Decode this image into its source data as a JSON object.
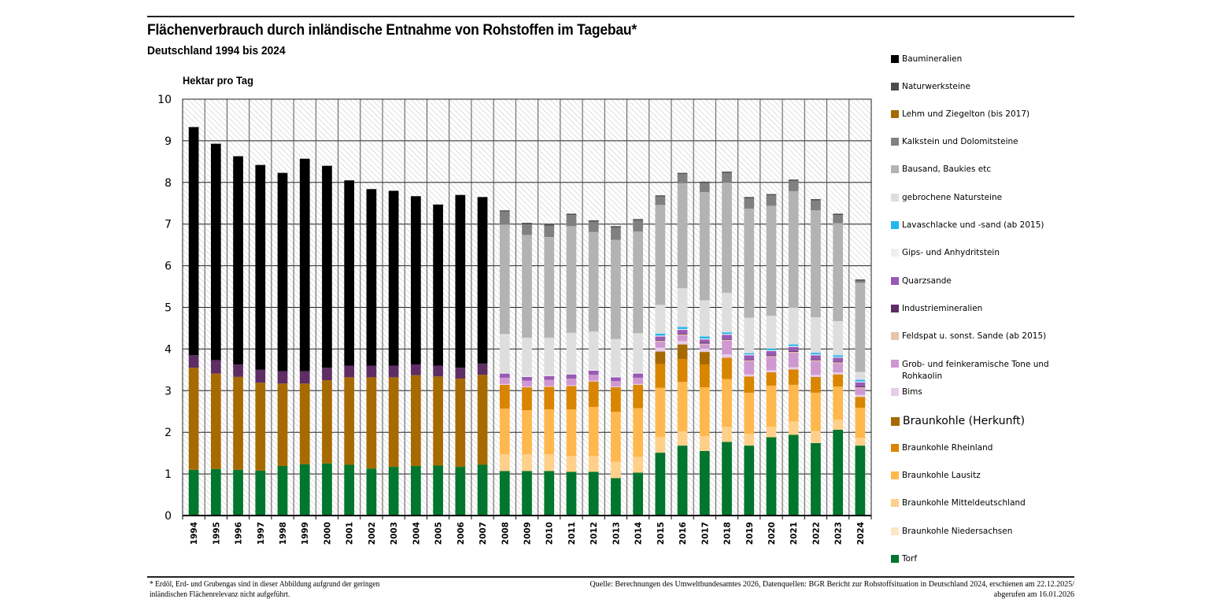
{
  "header": {
    "title": "Flächenverbrauch durch inländische Entnahme von Rohstoffen im Tagebau*",
    "subtitle": "Deutschland 1994 bis 2024",
    "unit": "Hektar pro Tag"
  },
  "footer": {
    "note_line1": "* Erdöl, Erd- und Grubengas sind in dieser Abbildung aufgrund der geringen",
    "note_line2": "inländischen Flächenrelevanz nicht aufgeführt.",
    "source_line1": "Quelle: Berechnungen des Umweltbundesamtes 2026, Datenquellen: BGR Bericht zur Rohstoffsituation in Deutschland 2024, erschienen am 22.12.2025/",
    "source_line2": "abgerufen am 16.01.2026"
  },
  "legend": [
    {
      "label": "Baumineralien",
      "color": "#000000"
    },
    {
      "label": "Naturwerksteine",
      "color": "#4d4d4d"
    },
    {
      "label": "Lehm und Ziegelton (bis 2017)",
      "color": "#a66a00"
    },
    {
      "label": "Kalkstein und Dolomitsteine",
      "color": "#808080"
    },
    {
      "label": "Bausand, Baukies etc",
      "color": "#b3b3b3"
    },
    {
      "label": "gebrochene Natursteine",
      "color": "#dedede"
    },
    {
      "label": "Lavaschlacke und -sand (ab 2015)",
      "color": "#22b8ee"
    },
    {
      "label": "Gips- und Anhydritstein",
      "color": "#efefef"
    },
    {
      "label": "Quarzsande",
      "color": "#9b59b6"
    },
    {
      "label": "Industriemineralien",
      "color": "#5e2d63"
    },
    {
      "label": "Feldspat u. sonst. Sande (ab 2015)",
      "color": "#e8c4a8"
    },
    {
      "label": "Grob- und feinkeramische Tone und Rohkaolin",
      "color": "#cf98d0"
    },
    {
      "label": "Bims",
      "color": "#e6cde8"
    },
    {
      "label": "Braunkohle (Herkunft)",
      "color": "#a66a00"
    },
    {
      "label": "Braunkohle Rheinland",
      "color": "#d98500"
    },
    {
      "label": "Braunkohle Lausitz",
      "color": "#ffb84d"
    },
    {
      "label": "Braunkohle Mitteldeutschland",
      "color": "#ffd08a"
    },
    {
      "label": "Braunkohle Niedersachsen",
      "color": "#ffe6c4"
    },
    {
      "label": "Torf",
      "color": "#00762e"
    }
  ],
  "chart_data": {
    "type": "bar",
    "stacked": true,
    "title": "Flächenverbrauch durch inländische Entnahme von Rohstoffen im Tagebau*",
    "subtitle": "Deutschland 1994 bis 2024",
    "xlabel": "",
    "ylabel": "Hektar pro Tag",
    "ylim": [
      0,
      10
    ],
    "yticks": [
      0,
      1,
      2,
      3,
      4,
      5,
      6,
      7,
      8,
      9,
      10
    ],
    "grid": true,
    "legend_position": "right",
    "categories": [
      "1994",
      "1995",
      "1996",
      "1997",
      "1998",
      "1999",
      "2000",
      "2001",
      "2002",
      "2003",
      "2004",
      "2005",
      "2006",
      "2007",
      "2008",
      "2009",
      "2010",
      "2011",
      "2012",
      "2013",
      "2014",
      "2015",
      "2016",
      "2017",
      "2018",
      "2019",
      "2020",
      "2021",
      "2022",
      "2023",
      "2024"
    ],
    "series": [
      {
        "name": "Torf",
        "color": "#00762e",
        "values": [
          1.1,
          1.12,
          1.1,
          1.08,
          1.19,
          1.23,
          1.25,
          1.22,
          1.13,
          1.17,
          1.19,
          1.2,
          1.17,
          1.22,
          1.07,
          1.07,
          1.07,
          1.05,
          1.05,
          0.9,
          1.03,
          1.51,
          1.68,
          1.55,
          1.77,
          1.68,
          1.88,
          1.94,
          1.74,
          2.06,
          1.68
        ]
      },
      {
        "name": "Braunkohle Niedersachsen",
        "color": "#ffe6c4",
        "values": [
          0,
          0,
          0,
          0,
          0,
          0,
          0,
          0,
          0,
          0,
          0,
          0,
          0,
          0,
          0,
          0,
          0,
          0,
          0,
          0,
          0,
          0,
          0,
          0,
          0,
          0,
          0,
          0,
          0,
          0,
          0
        ]
      },
      {
        "name": "Braunkohle Mitteldeutschland",
        "color": "#ffd08a",
        "values": [
          0,
          0,
          0,
          0,
          0,
          0,
          0,
          0,
          0,
          0,
          0,
          0,
          0,
          0,
          0.4,
          0.4,
          0.4,
          0.38,
          0.38,
          0.39,
          0.38,
          0.38,
          0.34,
          0.36,
          0.36,
          0.28,
          0.25,
          0.32,
          0.29,
          0.24,
          0.19
        ]
      },
      {
        "name": "Braunkohle Lausitz",
        "color": "#ffb84d",
        "values": [
          0,
          0,
          0,
          0,
          0,
          0,
          0,
          0,
          0,
          0,
          0,
          0,
          0,
          0,
          1.1,
          1.06,
          1.08,
          1.12,
          1.18,
          1.2,
          1.17,
          1.18,
          1.19,
          1.17,
          1.15,
          0.99,
          0.99,
          0.88,
          0.92,
          0.8,
          0.72
        ]
      },
      {
        "name": "Braunkohle Rheinland",
        "color": "#d98500",
        "values": [
          0,
          0,
          0,
          0,
          0,
          0,
          0,
          0,
          0,
          0,
          0,
          0,
          0,
          0,
          0.57,
          0.55,
          0.54,
          0.56,
          0.61,
          0.59,
          0.56,
          0.57,
          0.55,
          0.55,
          0.51,
          0.39,
          0.32,
          0.37,
          0.38,
          0.29,
          0.26
        ]
      },
      {
        "name": "Lehm und Ziegelton (bis 2017)",
        "color": "#a66a00",
        "values": [
          2.45,
          2.29,
          2.23,
          2.11,
          1.98,
          1.94,
          2.0,
          2.1,
          2.19,
          2.15,
          2.18,
          2.14,
          2.12,
          2.16,
          0,
          0,
          0,
          0,
          0,
          0,
          0,
          0.3,
          0.35,
          0.3,
          0,
          0,
          0,
          0,
          0,
          0,
          0
        ]
      },
      {
        "name": "Bims",
        "color": "#e6cde8",
        "values": [
          0,
          0,
          0,
          0,
          0,
          0,
          0,
          0,
          0,
          0,
          0,
          0,
          0,
          0,
          0.02,
          0.02,
          0.02,
          0.02,
          0.02,
          0.02,
          0.02,
          0.09,
          0.08,
          0.08,
          0.08,
          0.05,
          0.05,
          0.05,
          0.05,
          0.05,
          0.05
        ]
      },
      {
        "name": "Grob- und feinkeramische Tone und Rohkaolin",
        "color": "#cf98d0",
        "values": [
          0,
          0,
          0,
          0,
          0,
          0,
          0,
          0,
          0,
          0,
          0,
          0,
          0,
          0,
          0.15,
          0.14,
          0.15,
          0.16,
          0.14,
          0.13,
          0.15,
          0.15,
          0.14,
          0.1,
          0.33,
          0.32,
          0.32,
          0.35,
          0.33,
          0.22,
          0.16
        ]
      },
      {
        "name": "Feldspat u. sonst. Sande (ab 2015)",
        "color": "#e8c4a8",
        "values": [
          0,
          0,
          0,
          0,
          0,
          0,
          0,
          0,
          0,
          0,
          0,
          0,
          0,
          0,
          0,
          0,
          0,
          0,
          0,
          0,
          0,
          0.02,
          0.02,
          0.02,
          0.02,
          0.02,
          0.02,
          0.02,
          0.02,
          0.02,
          0.02
        ]
      },
      {
        "name": "Industriemineralien",
        "color": "#5e2d63",
        "values": [
          0.3,
          0.32,
          0.3,
          0.31,
          0.3,
          0.3,
          0.3,
          0.28,
          0.28,
          0.28,
          0.26,
          0.26,
          0.26,
          0.27,
          0,
          0,
          0,
          0,
          0,
          0,
          0,
          0.02,
          0.02,
          0.02,
          0.02,
          0.02,
          0.02,
          0.02,
          0.02,
          0.02,
          0.02
        ]
      },
      {
        "name": "Quarzsande",
        "color": "#9b59b6",
        "values": [
          0,
          0,
          0,
          0,
          0,
          0,
          0,
          0,
          0,
          0,
          0,
          0,
          0,
          0,
          0.1,
          0.09,
          0.09,
          0.1,
          0.1,
          0.09,
          0.1,
          0.08,
          0.09,
          0.08,
          0.1,
          0.1,
          0.1,
          0.1,
          0.1,
          0.09,
          0.1
        ]
      },
      {
        "name": "Gips- und Anhydritstein",
        "color": "#efefef",
        "values": [
          0,
          0,
          0,
          0,
          0,
          0,
          0,
          0,
          0,
          0,
          0,
          0,
          0,
          0,
          0.02,
          0.02,
          0.02,
          0.02,
          0.02,
          0.02,
          0.02,
          0.02,
          0.02,
          0.02,
          0.02,
          0.02,
          0.02,
          0.02,
          0.02,
          0.02,
          0.02
        ]
      },
      {
        "name": "Lavaschlacke und -sand (ab 2015)",
        "color": "#22b8ee",
        "values": [
          0,
          0,
          0,
          0,
          0,
          0,
          0,
          0,
          0,
          0,
          0,
          0,
          0,
          0,
          0,
          0,
          0,
          0,
          0,
          0,
          0,
          0.05,
          0.05,
          0.05,
          0.04,
          0.03,
          0.04,
          0.04,
          0.04,
          0.04,
          0.04
        ]
      },
      {
        "name": "gebrochene Natursteine",
        "color": "#dedede",
        "values": [
          0,
          0,
          0,
          0,
          0,
          0,
          0,
          0,
          0,
          0,
          0,
          0,
          0,
          0,
          0.93,
          0.92,
          0.9,
          0.98,
          0.92,
          0.9,
          0.95,
          0.69,
          0.93,
          0.87,
          0.95,
          0.85,
          0.79,
          0.88,
          0.85,
          0.82,
          0.19
        ]
      },
      {
        "name": "Bausand, Baukies etc",
        "color": "#b3b3b3",
        "values": [
          0,
          0,
          0,
          0,
          0,
          0,
          0,
          0,
          0,
          0,
          0,
          0,
          0,
          0,
          2.63,
          2.47,
          2.42,
          2.56,
          2.39,
          2.38,
          2.44,
          2.4,
          2.52,
          2.6,
          2.65,
          2.62,
          2.64,
          2.8,
          2.57,
          2.35,
          2.14
        ]
      },
      {
        "name": "Kalkstein und Dolomitsteine",
        "color": "#808080",
        "values": [
          0,
          0,
          0,
          0,
          0,
          0,
          0,
          0,
          0,
          0,
          0,
          0,
          0,
          0,
          0.31,
          0.26,
          0.27,
          0.27,
          0.25,
          0.3,
          0.27,
          0.2,
          0.22,
          0.22,
          0.23,
          0.25,
          0.25,
          0.25,
          0.24,
          0.2,
          0.05
        ]
      },
      {
        "name": "Naturwerksteine",
        "color": "#4d4d4d",
        "values": [
          0,
          0,
          0,
          0,
          0,
          0,
          0,
          0,
          0,
          0,
          0,
          0,
          0,
          0,
          0.03,
          0.03,
          0.03,
          0.03,
          0.03,
          0.03,
          0.03,
          0.03,
          0.03,
          0.03,
          0.03,
          0.03,
          0.03,
          0.03,
          0.03,
          0.03,
          0.03
        ]
      },
      {
        "name": "Baumineralien",
        "color": "#000000",
        "values": [
          5.48,
          5.2,
          5.0,
          4.92,
          4.76,
          5.1,
          4.85,
          4.45,
          4.24,
          4.2,
          4.04,
          3.87,
          4.15,
          4.0,
          0,
          0,
          0,
          0,
          0,
          0,
          0,
          0,
          0,
          0,
          0,
          0,
          0,
          0,
          0,
          0,
          0
        ]
      }
    ]
  }
}
